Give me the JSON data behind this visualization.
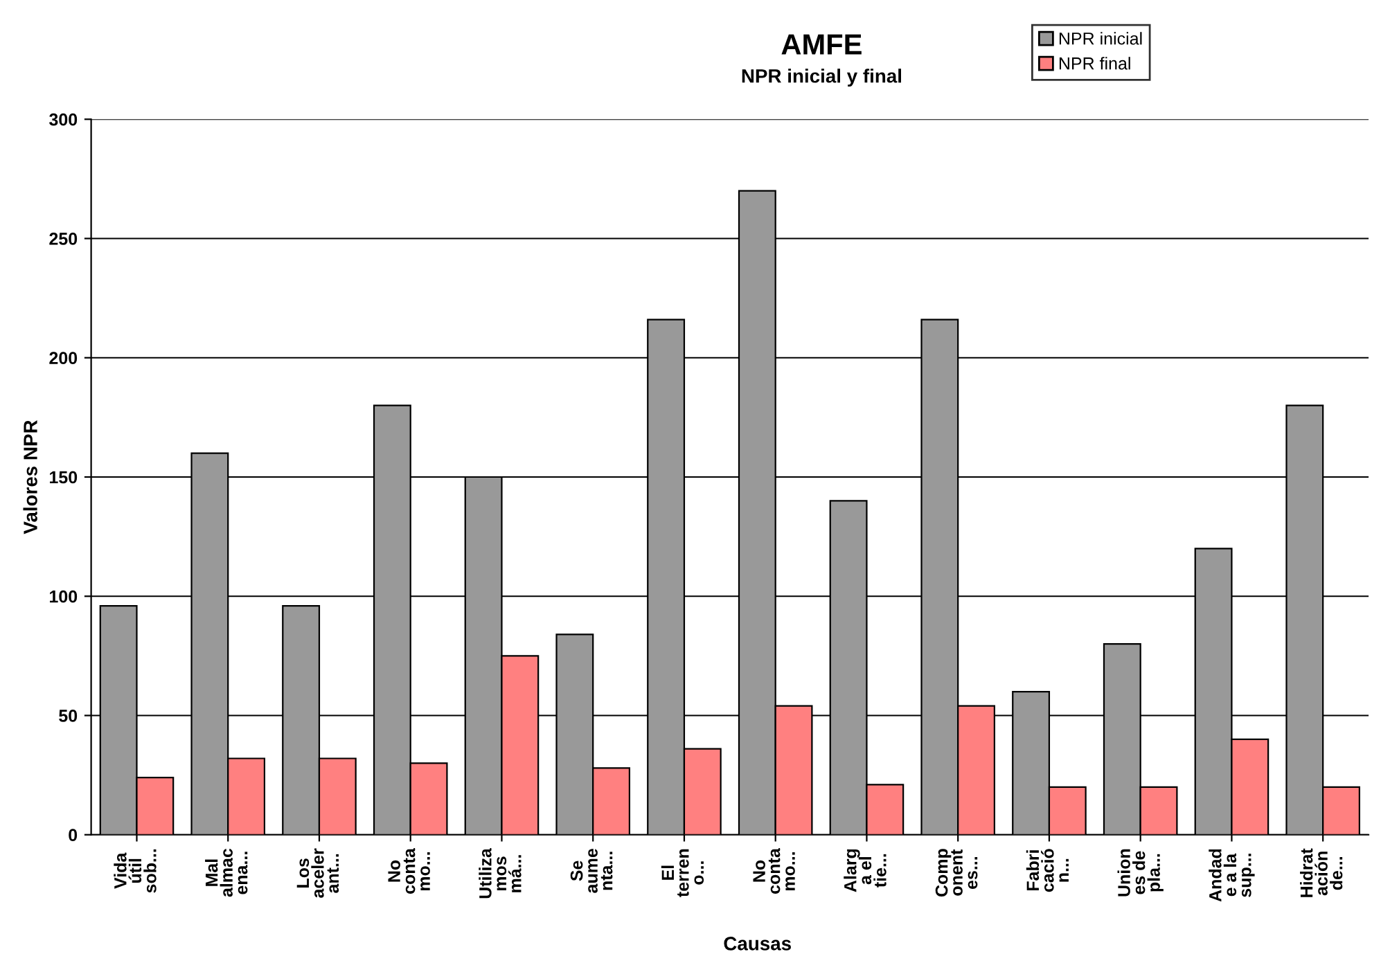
{
  "chart_data": {
    "type": "bar",
    "title": "AMFE",
    "subtitle": "NPR inicial y final",
    "xlabel": "Causas",
    "ylabel": "Valores NPR",
    "categories": [
      "Vida\nútil\nsob...",
      "Mal\nalmac\nena...",
      "Los\naceler\nant...",
      "No\nconta\nmo...",
      "Utiliza\nmos\nmá...",
      "Se\naume\nnta...",
      "El\nterren\no...",
      "No\nconta\nmo...",
      "Alarg\na el\ntie...",
      "Comp\nonent\nes...",
      "Fabri\ncació\nn...",
      "Union\nes de\npla...",
      "Andad\ne a la\nsup...",
      "Hidrat\nación\nde..."
    ],
    "series": [
      {
        "name": "NPR inicial",
        "color": "#999999",
        "values": [
          96,
          160,
          96,
          180,
          150,
          84,
          216,
          270,
          140,
          216,
          60,
          80,
          120,
          180
        ]
      },
      {
        "name": "NPR final",
        "color": "#ff8080",
        "values": [
          24,
          32,
          32,
          30,
          75,
          28,
          36,
          54,
          21,
          54,
          20,
          20,
          40,
          20
        ]
      }
    ],
    "ylim": [
      0,
      300
    ],
    "yticks": [
      0,
      50,
      100,
      150,
      200,
      250,
      300
    ],
    "grid": "y",
    "legend": "top right"
  }
}
